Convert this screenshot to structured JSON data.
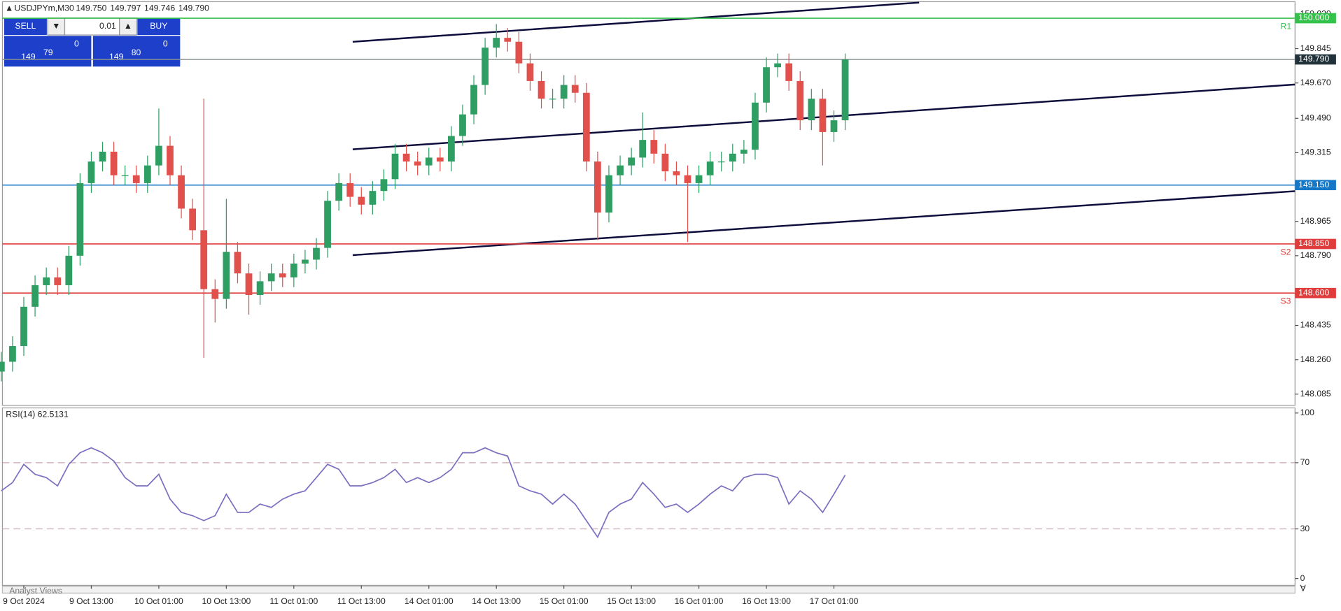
{
  "header": {
    "symbol": "USDJPYm,M30",
    "ohlc": [
      "149.750",
      "149.797",
      "149.746",
      "149.790"
    ]
  },
  "trade_panel": {
    "sell": "SELL",
    "buy": "BUY",
    "volume": "0.01",
    "bid": {
      "big": "149",
      "main": "79",
      "sup": "0"
    },
    "ask": {
      "big": "149",
      "main": "80",
      "sup": "0"
    }
  },
  "footer_tab": "Analyst Views",
  "chart_data": [
    {
      "type": "candlestick",
      "up_color": "#2f9e63",
      "down_color": "#e2504c",
      "categories": [
        null,
        null,
        "9 Oct 2024",
        null,
        null,
        null,
        null,
        null,
        "9 Oct 13:00",
        null,
        null,
        null,
        null,
        null,
        "10 Oct 01:00",
        null,
        null,
        null,
        null,
        null,
        "10 Oct 13:00",
        null,
        null,
        null,
        null,
        null,
        "11 Oct 01:00",
        null,
        null,
        null,
        null,
        null,
        "11 Oct 13:00",
        null,
        null,
        null,
        null,
        null,
        "14 Oct 01:00",
        null,
        null,
        null,
        null,
        null,
        "14 Oct 13:00",
        null,
        null,
        null,
        null,
        null,
        "15 Oct 01:00",
        null,
        null,
        null,
        null,
        null,
        "15 Oct 13:00",
        null,
        null,
        null,
        null,
        null,
        "16 Oct 01:00",
        null,
        null,
        null,
        null,
        null,
        "16 Oct 13:00",
        null,
        null,
        null,
        null,
        null,
        "17 Oct 01:00",
        null
      ],
      "open": [
        148.2,
        148.25,
        148.33,
        148.53,
        148.64,
        148.68,
        148.64,
        148.79,
        149.16,
        149.27,
        149.32,
        149.2,
        149.2,
        149.16,
        149.25,
        149.35,
        149.2,
        149.03,
        148.92,
        148.62,
        148.57,
        148.81,
        148.7,
        148.59,
        148.66,
        148.7,
        148.68,
        148.75,
        148.77,
        148.83,
        149.07,
        149.16,
        149.09,
        149.05,
        149.12,
        149.18,
        149.31,
        149.27,
        149.25,
        149.29,
        149.27,
        149.4,
        149.51,
        149.66,
        149.85,
        149.9,
        149.88,
        149.77,
        149.68,
        149.59,
        149.59,
        149.66,
        149.62,
        149.27,
        149.01,
        149.2,
        149.25,
        149.29,
        149.38,
        149.31,
        149.22,
        149.2,
        149.16,
        149.2,
        149.27,
        149.27,
        149.31,
        149.33,
        149.57,
        149.75,
        149.77,
        149.68,
        149.48,
        149.59,
        149.42,
        149.48
      ],
      "high": [
        148.3,
        148.38,
        148.58,
        148.69,
        148.73,
        148.73,
        148.84,
        149.21,
        149.32,
        149.37,
        149.37,
        149.25,
        149.25,
        149.3,
        149.54,
        149.4,
        149.25,
        149.08,
        149.59,
        148.67,
        149.08,
        148.86,
        148.75,
        148.71,
        148.75,
        148.75,
        148.8,
        148.82,
        148.88,
        149.12,
        149.21,
        149.21,
        149.14,
        149.17,
        149.23,
        149.36,
        149.36,
        149.32,
        149.34,
        149.34,
        149.45,
        149.56,
        149.71,
        149.9,
        149.97,
        149.95,
        149.93,
        149.82,
        149.73,
        149.64,
        149.71,
        149.71,
        149.67,
        149.32,
        149.25,
        149.3,
        149.34,
        149.52,
        149.43,
        149.36,
        149.27,
        149.25,
        149.25,
        149.32,
        149.32,
        149.36,
        149.38,
        149.62,
        149.8,
        149.82,
        149.82,
        149.73,
        149.64,
        149.64,
        149.53,
        149.82
      ],
      "low": [
        148.15,
        148.2,
        148.28,
        148.48,
        148.59,
        148.59,
        148.59,
        148.74,
        149.11,
        149.22,
        149.15,
        149.15,
        149.11,
        149.11,
        149.2,
        149.15,
        148.98,
        148.87,
        148.27,
        148.45,
        148.52,
        148.65,
        148.49,
        148.54,
        148.61,
        148.63,
        148.63,
        148.7,
        148.72,
        148.78,
        149.02,
        149.04,
        149.0,
        149.0,
        149.07,
        149.13,
        149.22,
        149.2,
        149.2,
        149.22,
        149.22,
        149.35,
        149.46,
        149.61,
        149.8,
        149.83,
        149.72,
        149.63,
        149.54,
        149.54,
        149.54,
        149.57,
        149.22,
        148.87,
        148.96,
        149.15,
        149.2,
        149.24,
        149.26,
        149.17,
        149.15,
        148.86,
        149.11,
        149.15,
        149.22,
        149.22,
        149.26,
        149.28,
        149.52,
        149.7,
        149.63,
        149.43,
        149.43,
        149.25,
        149.37,
        149.43
      ],
      "close": [
        148.25,
        148.33,
        148.53,
        148.64,
        148.68,
        148.64,
        148.79,
        149.16,
        149.27,
        149.32,
        149.2,
        149.2,
        149.16,
        149.25,
        149.35,
        149.2,
        149.03,
        148.92,
        148.62,
        148.57,
        148.81,
        148.7,
        148.59,
        148.66,
        148.7,
        148.68,
        148.75,
        148.77,
        148.83,
        149.07,
        149.16,
        149.09,
        149.05,
        149.12,
        149.18,
        149.31,
        149.27,
        149.25,
        149.29,
        149.27,
        149.4,
        149.51,
        149.66,
        149.85,
        149.9,
        149.88,
        149.77,
        149.68,
        149.59,
        149.59,
        149.66,
        149.62,
        149.27,
        149.01,
        149.2,
        149.25,
        149.29,
        149.38,
        149.31,
        149.22,
        149.2,
        149.16,
        149.2,
        149.27,
        149.27,
        149.31,
        149.33,
        149.57,
        149.75,
        149.77,
        149.68,
        149.48,
        149.59,
        149.42,
        149.48,
        149.79
      ],
      "ylim": [
        148.028,
        150.084
      ],
      "yticks": [
        {
          "value": 150.02,
          "label": "150.020"
        },
        149.845,
        {
          "value": 149.67,
          "label": "149.670"
        },
        {
          "value": 149.49,
          "label": "149.490"
        },
        149.315,
        148.965,
        {
          "value": 148.79,
          "label": "148.790"
        },
        148.435,
        {
          "value": 148.26,
          "label": "148.260"
        },
        148.085
      ],
      "levels": [
        {
          "value": 150,
          "label": "150.000",
          "color": "#33c24a",
          "tag": "R1"
        },
        {
          "value": 149.79,
          "label": "149.790",
          "color": "#8a9090"
        },
        {
          "value": 149.15,
          "label": "149.150",
          "color": "#1478c8"
        },
        {
          "value": 148.85,
          "label": "148.850",
          "color": "#e03c3c",
          "tag": "S2"
        },
        {
          "value": 148.6,
          "label": "148.600",
          "color": "#e03c3c",
          "tag": "S3"
        }
      ]
    },
    {
      "type": "line",
      "title": "RSI(14) 62.5131",
      "color": "#7a6fc0",
      "values": [
        53,
        58,
        69,
        63,
        61,
        56,
        69,
        76,
        79,
        76,
        71,
        61,
        56,
        56,
        63,
        48,
        40,
        38,
        35,
        38,
        51,
        40,
        40,
        45,
        43,
        48,
        51,
        53,
        61,
        69,
        66,
        56,
        56,
        58,
        61,
        66,
        58,
        61,
        58,
        61,
        66,
        76,
        76,
        79,
        76,
        74,
        56,
        53,
        51,
        45,
        51,
        45,
        35,
        25,
        40,
        45,
        48,
        58,
        51,
        43,
        45,
        40,
        45,
        51,
        56,
        53,
        61,
        63,
        63,
        61,
        45,
        53,
        48,
        40,
        51,
        62.51
      ],
      "ylim": [
        0,
        100
      ],
      "yticks": [
        0,
        30,
        70,
        100
      ],
      "levels": [
        70,
        30
      ]
    }
  ]
}
